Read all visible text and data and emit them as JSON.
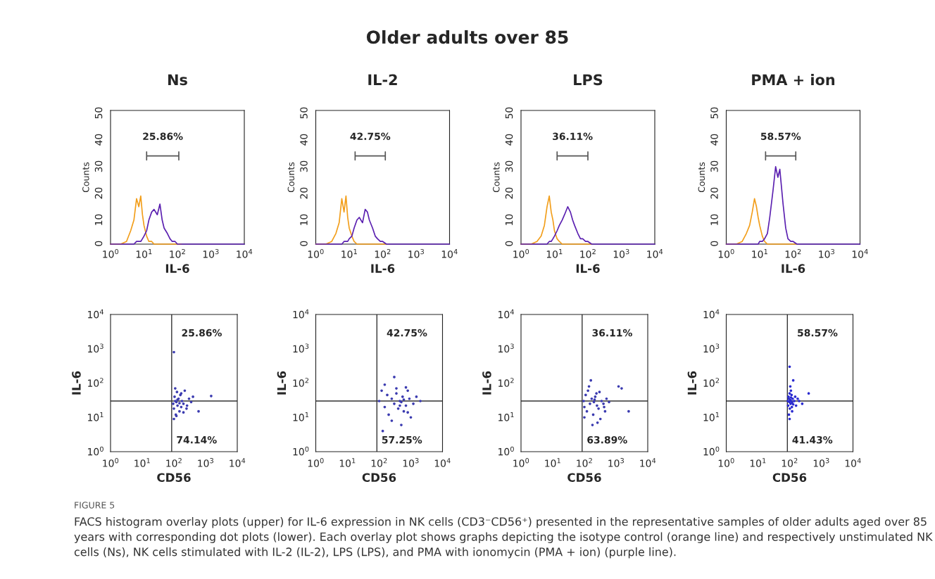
{
  "chart_data": [
    {
      "type": "other",
      "title": "Older adults over 85",
      "annotations": [
        "FIGURE 5",
        "FACS histogram overlay plots (upper) for IL-6 expression in NK cells (CD3⁻CD56⁺) presented in the representative samples of older adults aged over 85 years with corresponding dot plots (lower). Each overlay plot shows graphs depicting the isotype control (orange line) and respectively unstimulated NK cells (Ns), NK cells stimulated with IL-2 (IL-2), LPS (LPS), and PMA with ionomycin (PMA + ion) (purple line)."
      ]
    },
    {
      "type": "line",
      "title": "Ns",
      "xlabel": "IL-6",
      "ylabel": "Counts",
      "log": "x",
      "x": [
        1,
        2,
        3,
        4,
        5,
        6,
        7,
        8,
        9,
        10,
        12,
        14,
        17,
        20,
        25,
        30,
        35,
        40,
        50,
        60,
        70,
        85,
        100,
        130,
        200,
        400,
        1000,
        10000
      ],
      "series": [
        {
          "color": "#f29e1a",
          "values": [
            0,
            0,
            1,
            5,
            9,
            17,
            14,
            18,
            11,
            7,
            3,
            1,
            1,
            0,
            0,
            0,
            0,
            0,
            0,
            0,
            0,
            0,
            0,
            0,
            null,
            null,
            null,
            null
          ]
        },
        {
          "color": "#5a1fb0",
          "values": [
            0,
            0,
            0,
            0,
            0,
            1,
            1,
            1,
            2,
            3,
            5,
            9,
            12,
            13,
            11,
            15,
            9,
            6,
            4,
            2,
            1,
            1,
            0,
            0,
            0,
            0,
            0,
            0
          ]
        },
        {
          "color": "#555555",
          "x": [
            12,
            12,
            12,
            110,
            110,
            110
          ],
          "values": [
            31.5,
            34.5,
            33,
            33,
            31.5,
            34.5
          ]
        }
      ],
      "annotations": [
        "25.86%"
      ],
      "xlim": [
        1,
        10000
      ],
      "xticks": [
        {
          "value": 1,
          "label": "10$^{0}$"
        },
        {
          "value": 10,
          "label": "10$^{1}$"
        },
        {
          "value": 100,
          "label": "10$^{2}$"
        },
        {
          "value": 1000,
          "label": "10$^{3}$"
        },
        {
          "value": 10000,
          "label": "10$^{4}$"
        }
      ],
      "ylim": [
        0,
        50
      ],
      "yticks": [
        0,
        10,
        20,
        30,
        40,
        50
      ],
      "grid": false
    },
    {
      "type": "line",
      "title": "IL-2",
      "xlabel": "IL-6",
      "ylabel": "Counts",
      "log": "x",
      "x": [
        1,
        2,
        3,
        4,
        5,
        6,
        7,
        8,
        9,
        10,
        12,
        14,
        17,
        20,
        25,
        30,
        35,
        40,
        50,
        60,
        70,
        85,
        100,
        130,
        200,
        400,
        1000,
        10000
      ],
      "series": [
        {
          "color": "#f29e1a",
          "values": [
            0,
            0,
            1,
            4,
            8,
            17,
            12,
            18,
            10,
            6,
            3,
            1,
            0,
            0,
            0,
            0,
            0,
            0,
            0,
            0,
            0,
            0,
            0,
            0,
            null,
            null,
            null,
            null
          ]
        },
        {
          "color": "#5a1fb0",
          "values": [
            0,
            0,
            0,
            0,
            0,
            0,
            1,
            1,
            1,
            2,
            3,
            6,
            9,
            10,
            8,
            13,
            12,
            9,
            6,
            3,
            2,
            1,
            1,
            0,
            0,
            0,
            0,
            0
          ]
        },
        {
          "color": "#555555",
          "x": [
            15,
            15,
            15,
            120,
            120,
            120
          ],
          "values": [
            31.5,
            34.5,
            33,
            33,
            31.5,
            34.5
          ]
        }
      ],
      "annotations": [
        "42.75%"
      ],
      "xlim": [
        1,
        10000
      ],
      "xticks": [
        {
          "value": 1,
          "label": "10$^{0}$"
        },
        {
          "value": 10,
          "label": "10$^{1}$"
        },
        {
          "value": 100,
          "label": "10$^{2}$"
        },
        {
          "value": 1000,
          "label": "10$^{3}$"
        },
        {
          "value": 10000,
          "label": "10$^{4}$"
        }
      ],
      "ylim": [
        0,
        50
      ],
      "yticks": [
        0,
        10,
        20,
        30,
        40,
        50
      ],
      "grid": false
    },
    {
      "type": "line",
      "title": "LPS",
      "xlabel": "IL-6",
      "ylabel": "Counts",
      "log": "x",
      "x": [
        1,
        2,
        3,
        4,
        5,
        6,
        7,
        8,
        9,
        10,
        12,
        14,
        17,
        20,
        25,
        30,
        35,
        40,
        50,
        60,
        70,
        85,
        100,
        130,
        200,
        400,
        1000,
        10000
      ],
      "series": [
        {
          "color": "#f29e1a",
          "values": [
            0,
            0,
            1,
            3,
            7,
            14,
            18,
            12,
            9,
            5,
            2,
            1,
            0,
            0,
            0,
            0,
            0,
            0,
            0,
            0,
            0,
            0,
            0,
            0,
            null,
            null,
            null,
            null
          ]
        },
        {
          "color": "#5a1fb0",
          "values": [
            0,
            0,
            0,
            0,
            0,
            0,
            1,
            1,
            2,
            3,
            5,
            7,
            9,
            11,
            14,
            12,
            9,
            7,
            4,
            2,
            2,
            1,
            1,
            0,
            0,
            0,
            0,
            0
          ]
        },
        {
          "color": "#555555",
          "x": [
            12,
            12,
            12,
            100,
            100,
            100
          ],
          "values": [
            31.5,
            34.5,
            33,
            33,
            31.5,
            34.5
          ]
        }
      ],
      "annotations": [
        "36.11%"
      ],
      "xlim": [
        1,
        10000
      ],
      "xticks": [
        {
          "value": 1,
          "label": "10$^{0}$"
        },
        {
          "value": 10,
          "label": "10$^{1}$"
        },
        {
          "value": 100,
          "label": "10$^{2}$"
        },
        {
          "value": 1000,
          "label": "10$^{3}$"
        },
        {
          "value": 10000,
          "label": "10$^{4}$"
        }
      ],
      "ylim": [
        0,
        50
      ],
      "yticks": [
        0,
        10,
        20,
        30,
        40,
        50
      ],
      "grid": false
    },
    {
      "type": "line",
      "title": "PMA + ion",
      "xlabel": "IL-6",
      "ylabel": "Counts",
      "log": "x",
      "x": [
        1,
        2,
        3,
        4,
        5,
        6,
        7,
        8,
        9,
        10,
        12,
        14,
        17,
        20,
        25,
        30,
        35,
        40,
        50,
        60,
        70,
        85,
        100,
        130,
        200,
        400,
        1000,
        10000
      ],
      "series": [
        {
          "color": "#f29e1a",
          "values": [
            0,
            0,
            1,
            4,
            7,
            12,
            17,
            14,
            10,
            7,
            3,
            1,
            0,
            0,
            0,
            0,
            0,
            0,
            0,
            0,
            0,
            0,
            0,
            0,
            null,
            null,
            null,
            null
          ]
        },
        {
          "color": "#5a1fb0",
          "values": [
            0,
            0,
            0,
            0,
            0,
            0,
            0,
            0,
            0,
            1,
            1,
            2,
            4,
            10,
            20,
            29,
            25,
            28,
            15,
            6,
            2,
            1,
            1,
            0,
            0,
            0,
            0,
            0
          ]
        },
        {
          "color": "#555555",
          "x": [
            15,
            15,
            15,
            120,
            120,
            120
          ],
          "values": [
            31.5,
            34.5,
            33,
            33,
            31.5,
            34.5
          ]
        }
      ],
      "annotations": [
        "58.57%"
      ],
      "xlim": [
        1,
        10000
      ],
      "xticks": [
        {
          "value": 1,
          "label": "10$^{0}$"
        },
        {
          "value": 10,
          "label": "10$^{1}$"
        },
        {
          "value": 100,
          "label": "10$^{2}$"
        },
        {
          "value": 1000,
          "label": "10$^{3}$"
        },
        {
          "value": 10000,
          "label": "10$^{4}$"
        }
      ],
      "ylim": [
        0,
        50
      ],
      "yticks": [
        0,
        10,
        20,
        30,
        40,
        50
      ],
      "grid": false
    },
    {
      "type": "scatter",
      "xlabel": "CD56",
      "ylabel": "IL-6",
      "log": "xy",
      "marker": "circle",
      "series": [
        {
          "color": "#3b3bb0",
          "x": [
            95,
            100,
            105,
            110,
            115,
            120,
            125,
            130,
            140,
            150,
            160,
            170,
            180,
            200,
            220,
            250,
            300,
            350,
            100,
            110,
            120,
            130,
            150,
            170,
            200,
            260,
            400,
            600,
            1500,
            100
          ],
          "values": [
            25,
            18,
            40,
            30,
            12,
            28,
            55,
            22,
            35,
            15,
            45,
            20,
            30,
            25,
            60,
            18,
            35,
            28,
            9,
            70,
            11,
            33,
            26,
            50,
            14,
            22,
            40,
            15,
            42,
            800
          ]
        }
      ],
      "ref_lines": [
        {
          "axis": "x",
          "value": 85,
          "color": "#333333"
        },
        {
          "axis": "y",
          "value": 30,
          "color": "#333333"
        }
      ],
      "annotations": [
        "25.86%",
        "74.14%"
      ],
      "xlim": [
        1,
        10000
      ],
      "xticks": [
        {
          "value": 1,
          "label": "10$^{0}$"
        },
        {
          "value": 10,
          "label": "10$^{1}$"
        },
        {
          "value": 100,
          "label": "10$^{2}$"
        },
        {
          "value": 1000,
          "label": "10$^{3}$"
        },
        {
          "value": 10000,
          "label": "10$^{4}$"
        }
      ],
      "ylim": [
        1,
        10000
      ],
      "yticks": [
        {
          "value": 1,
          "label": "10$^{0}$"
        },
        {
          "value": 10,
          "label": "10$^{1}$"
        },
        {
          "value": 100,
          "label": "10$^{2}$"
        },
        {
          "value": 1000,
          "label": "10$^{3}$"
        },
        {
          "value": 10000,
          "label": "10$^{4}$"
        }
      ],
      "grid": false
    },
    {
      "type": "scatter",
      "xlabel": "CD56",
      "ylabel": "IL-6",
      "log": "xy",
      "marker": "circle",
      "series": [
        {
          "color": "#3b3bb0",
          "x": [
            100,
            120,
            150,
            180,
            200,
            250,
            300,
            350,
            400,
            450,
            500,
            550,
            600,
            700,
            800,
            900,
            1000,
            1200,
            1500,
            2000,
            150,
            250,
            350,
            450,
            600,
            800,
            300,
            500,
            700,
            130
          ],
          "values": [
            30,
            60,
            20,
            45,
            12,
            35,
            25,
            70,
            18,
            30,
            28,
            40,
            15,
            22,
            60,
            35,
            10,
            25,
            40,
            30,
            90,
            8,
            50,
            22,
            33,
            14,
            150,
            6,
            75,
            4
          ]
        }
      ],
      "ref_lines": [
        {
          "axis": "x",
          "value": 85,
          "color": "#333333"
        },
        {
          "axis": "y",
          "value": 30,
          "color": "#333333"
        }
      ],
      "annotations": [
        "42.75%",
        "57.25%"
      ],
      "xlim": [
        1,
        10000
      ],
      "xticks": [
        {
          "value": 1,
          "label": "10$^{0}$"
        },
        {
          "value": 10,
          "label": "10$^{1}$"
        },
        {
          "value": 100,
          "label": "10$^{2}$"
        },
        {
          "value": 1000,
          "label": "10$^{3}$"
        },
        {
          "value": 10000,
          "label": "10$^{4}$"
        }
      ],
      "ylim": [
        1,
        10000
      ],
      "yticks": [
        {
          "value": 1,
          "label": "10$^{0}$"
        },
        {
          "value": 10,
          "label": "10$^{1}$"
        },
        {
          "value": 100,
          "label": "10$^{2}$"
        },
        {
          "value": 1000,
          "label": "10$^{3}$"
        },
        {
          "value": 10000,
          "label": "10$^{4}$"
        }
      ],
      "grid": false
    },
    {
      "type": "scatter",
      "xlabel": "CD56",
      "ylabel": "IL-6",
      "log": "xy",
      "marker": "circle",
      "series": [
        {
          "color": "#3b3bb0",
          "x": [
            95,
            100,
            110,
            120,
            130,
            150,
            170,
            190,
            200,
            220,
            250,
            280,
            300,
            350,
            400,
            450,
            500,
            600,
            100,
            140,
            180,
            240,
            320,
            420,
            160,
            260,
            210,
            1200,
            1500,
            2500
          ],
          "values": [
            30,
            20,
            45,
            15,
            60,
            25,
            35,
            12,
            28,
            40,
            22,
            18,
            55,
            30,
            25,
            15,
            35,
            28,
            10,
            80,
            6,
            50,
            9,
            20,
            120,
            7,
            33,
            80,
            70,
            15
          ]
        }
      ],
      "ref_lines": [
        {
          "axis": "x",
          "value": 85,
          "color": "#333333"
        },
        {
          "axis": "y",
          "value": 30,
          "color": "#333333"
        }
      ],
      "annotations": [
        "36.11%",
        "63.89%"
      ],
      "xlim": [
        1,
        10000
      ],
      "xticks": [
        {
          "value": 1,
          "label": "10$^{0}$"
        },
        {
          "value": 10,
          "label": "10$^{1}$"
        },
        {
          "value": 100,
          "label": "10$^{2}$"
        },
        {
          "value": 1000,
          "label": "10$^{3}$"
        },
        {
          "value": 10000,
          "label": "10$^{4}$"
        }
      ],
      "ylim": [
        1,
        10000
      ],
      "yticks": [
        {
          "value": 1,
          "label": "10$^{0}$"
        },
        {
          "value": 10,
          "label": "10$^{1}$"
        },
        {
          "value": 100,
          "label": "10$^{2}$"
        },
        {
          "value": 1000,
          "label": "10$^{3}$"
        },
        {
          "value": 10000,
          "label": "10$^{4}$"
        }
      ],
      "grid": false
    },
    {
      "type": "scatter",
      "xlabel": "CD56",
      "ylabel": "IL-6",
      "log": "xy",
      "marker": "circle",
      "series": [
        {
          "color": "#2a2ad0",
          "x": [
            88,
            90,
            92,
            95,
            98,
            100,
            102,
            105,
            108,
            110,
            112,
            115,
            118,
            120,
            125,
            130,
            140,
            150,
            160,
            180,
            200,
            250,
            95,
            100,
            105,
            110,
            120,
            130,
            100,
            400
          ],
          "values": [
            30,
            22,
            40,
            35,
            28,
            50,
            18,
            32,
            25,
            38,
            30,
            45,
            20,
            27,
            35,
            24,
            30,
            40,
            22,
            35,
            30,
            25,
            12,
            9,
            80,
            60,
            15,
            120,
            300,
            50
          ]
        }
      ],
      "ref_lines": [
        {
          "axis": "x",
          "value": 85,
          "color": "#333333"
        },
        {
          "axis": "y",
          "value": 30,
          "color": "#333333"
        }
      ],
      "annotations": [
        "58.57%",
        "41.43%"
      ],
      "xlim": [
        1,
        10000
      ],
      "xticks": [
        {
          "value": 1,
          "label": "10$^{0}$"
        },
        {
          "value": 10,
          "label": "10$^{1}$"
        },
        {
          "value": 100,
          "label": "10$^{2}$"
        },
        {
          "value": 1000,
          "label": "10$^{3}$"
        },
        {
          "value": 10000,
          "label": "10$^{4}$"
        }
      ],
      "ylim": [
        1,
        10000
      ],
      "yticks": [
        {
          "value": 1,
          "label": "10$^{0}$"
        },
        {
          "value": 10,
          "label": "10$^{1}$"
        },
        {
          "value": 100,
          "label": "10$^{2}$"
        },
        {
          "value": 1000,
          "label": "10$^{3}$"
        },
        {
          "value": 10000,
          "label": "10$^{4}$"
        }
      ],
      "grid": false
    }
  ]
}
